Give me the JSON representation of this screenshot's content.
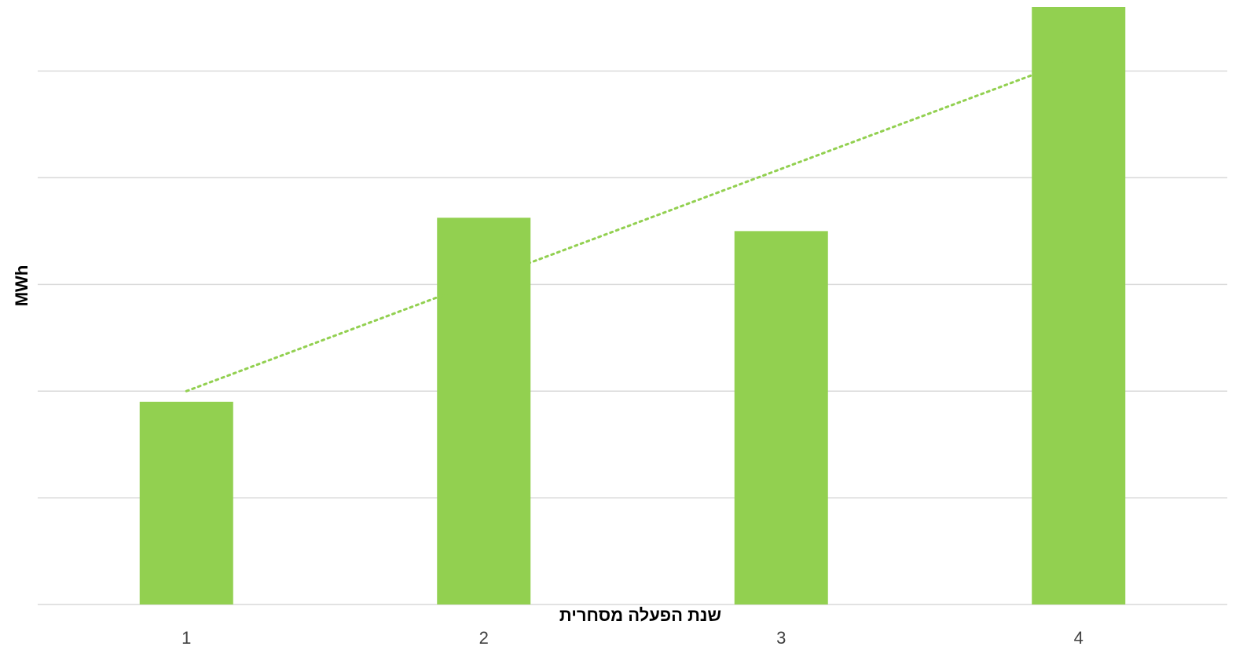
{
  "chart_data": {
    "type": "bar",
    "categories": [
      "1",
      "2",
      "3",
      "4"
    ],
    "values": [
      3.8,
      7.25,
      7.0,
      11.2
    ],
    "xlabel": "שנת הפעלה מסחרית",
    "ylabel": "MWh",
    "ylim": [
      0,
      11.2
    ],
    "y_gridlines": [
      0,
      2,
      4,
      6,
      8,
      10
    ],
    "y_tick_labels_shown": false,
    "grid": true,
    "legend": "none",
    "trendline": {
      "type": "linear",
      "style": "dotted",
      "start": {
        "category": "1",
        "value": 4.0
      },
      "end": {
        "category": "4",
        "value": 10.25
      }
    },
    "colors": {
      "bar": "#92d050",
      "trendline": "#92d050",
      "gridline": "#d9d9d9",
      "tick_label": "#404040",
      "axis_title": "#000000"
    }
  }
}
